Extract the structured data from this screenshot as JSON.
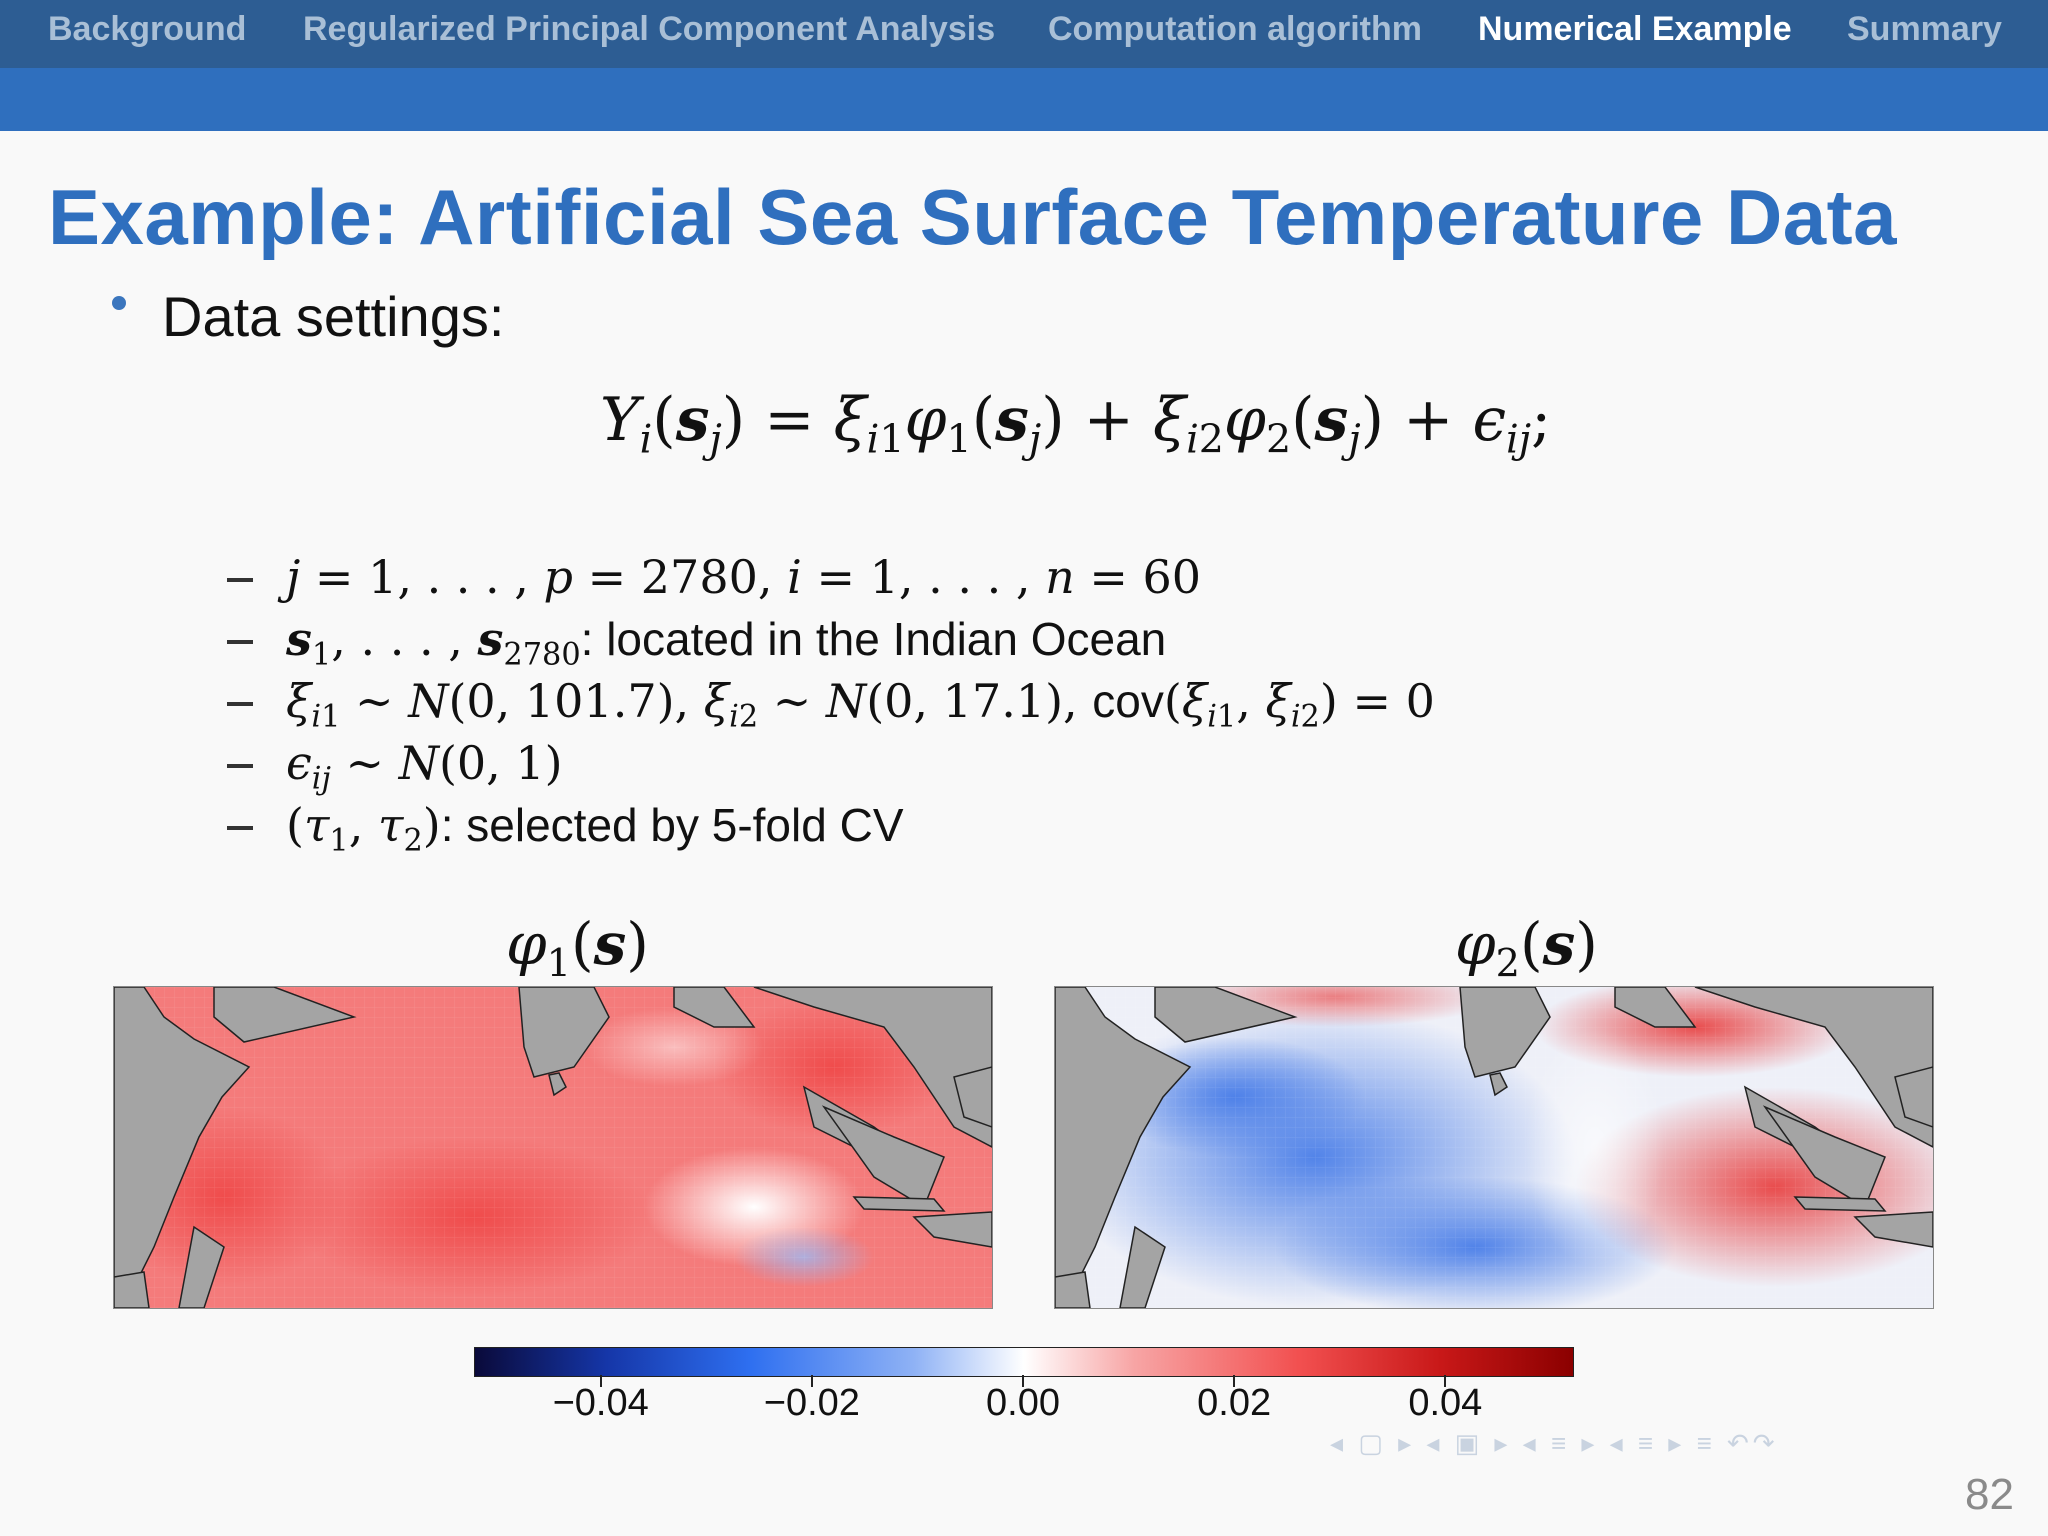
{
  "navbar": {
    "items": [
      {
        "label": "Background",
        "active": false
      },
      {
        "label": "Regularized Principal Component Analysis",
        "active": false
      },
      {
        "label": "Computation algorithm",
        "active": false
      },
      {
        "label": "Numerical Example",
        "active": true
      },
      {
        "label": "Summary",
        "active": false
      }
    ]
  },
  "slide": {
    "title": "Example: Artificial Sea Surface Temperature Data",
    "bullet": "Data settings:",
    "equation_sep": ";",
    "items": {
      "i1": {},
      "i2": {
        "text": ": located in the Indian Ocean"
      },
      "i3": {
        "cov": "cov"
      },
      "i4": {},
      "i5": {
        "text": ": selected by 5-fold CV"
      }
    }
  },
  "maps": {
    "left_title": "φ1(s)",
    "right_title": "φ2(s)"
  },
  "colorbar": {
    "range": [
      -0.052,
      0.052
    ],
    "colors": [
      "#0a0a3a",
      "#1536a8",
      "#2e6ff0",
      "#ffffff",
      "#f25050",
      "#8b0000"
    ],
    "ticks": [
      "−0.04",
      "−0.02",
      "0.00",
      "0.02",
      "0.04"
    ]
  },
  "nav_icons": "◂ ▢ ▸ ◂ ▣ ▸ ◂ ≡ ▸ ◂ ≡ ▸ ≡ ↶↷",
  "page_number": "82"
}
